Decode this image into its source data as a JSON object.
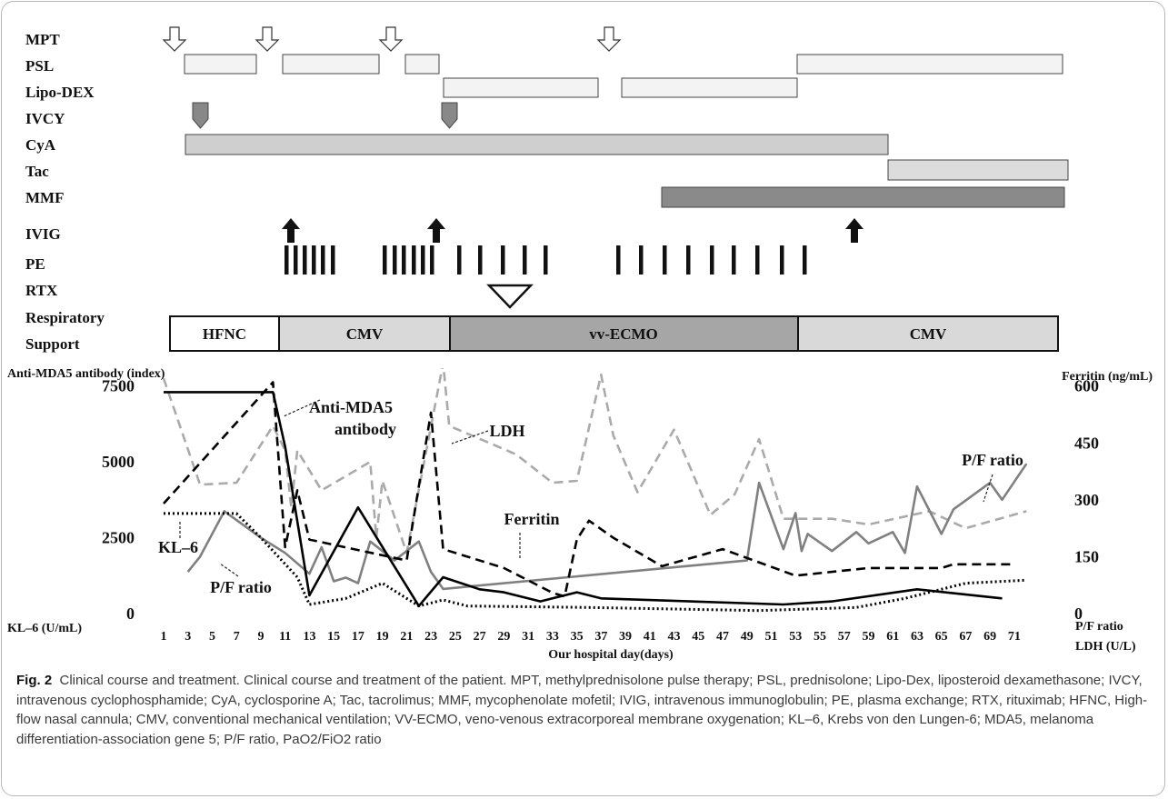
{
  "timeline": {
    "rows": [
      "MPT",
      "PSL",
      "Lipo-DEX",
      "IVCY",
      "CyA",
      "Tac",
      "MMF",
      "IVIG",
      "PE",
      "RTX"
    ],
    "respiratory_label_1": "Respiratory",
    "respiratory_label_2": "Support",
    "support_phases": [
      "HFNC",
      "CMV",
      "vv-ECMO",
      "CMV"
    ]
  },
  "chart_data": {
    "type": "line",
    "xlabel": "Our hospital day(days)",
    "x_ticks": [
      1,
      3,
      5,
      7,
      9,
      11,
      13,
      15,
      17,
      19,
      21,
      23,
      25,
      27,
      29,
      31,
      33,
      35,
      37,
      39,
      41,
      43,
      45,
      47,
      49,
      51,
      53,
      55,
      57,
      59,
      61,
      63,
      65,
      67,
      69,
      71
    ],
    "left_axis": {
      "title": "Anti-MDA5 antibody (index)",
      "ticks": [
        0,
        2500,
        5000,
        7500
      ],
      "ylim": [
        0,
        8000
      ],
      "bottom_label": "KL–6 (U/mL)"
    },
    "right_axis": {
      "title": "Ferritin (ng/mL)",
      "ticks": [
        0,
        150,
        300,
        450,
        600
      ],
      "ylim": [
        0,
        640
      ],
      "bottom_label_1": "P/F ratio",
      "bottom_label_2": "LDH (U/L)"
    },
    "annotations": {
      "anti_mda5_1": "Anti-MDA5",
      "anti_mda5_2": "antibody",
      "ldh": "LDH",
      "ferritin": "Ferritin",
      "pf_top": "P/F ratio",
      "kl6": "KL–6",
      "pf_left": "P/F ratio"
    },
    "series": [
      {
        "name": "Anti-MDA5 antibody",
        "axis": "left",
        "style": "solid",
        "color": "#000000",
        "points": [
          [
            1,
            7300
          ],
          [
            10,
            7300
          ],
          [
            11,
            5500
          ],
          [
            13,
            600
          ],
          [
            17,
            3500
          ],
          [
            22,
            250
          ],
          [
            24,
            1200
          ],
          [
            27,
            800
          ],
          [
            29,
            700
          ],
          [
            32,
            400
          ],
          [
            33,
            500
          ],
          [
            35,
            700
          ],
          [
            37,
            500
          ],
          [
            52,
            300
          ],
          [
            56,
            400
          ],
          [
            63,
            800
          ],
          [
            70,
            500
          ]
        ]
      },
      {
        "name": "Ferritin",
        "axis": "right",
        "style": "dashed",
        "color": "#000000",
        "points": [
          [
            1,
            290
          ],
          [
            10,
            610
          ],
          [
            11,
            175
          ],
          [
            12,
            325
          ],
          [
            13,
            195
          ],
          [
            21,
            140
          ],
          [
            23,
            530
          ],
          [
            24,
            170
          ],
          [
            29,
            120
          ],
          [
            33,
            55
          ],
          [
            34,
            45
          ],
          [
            35,
            195
          ],
          [
            36,
            245
          ],
          [
            38,
            200
          ],
          [
            42,
            125
          ],
          [
            47,
            170
          ],
          [
            53,
            100
          ],
          [
            59,
            120
          ],
          [
            65,
            120
          ],
          [
            66,
            130
          ],
          [
            71,
            130
          ]
        ]
      },
      {
        "name": "LDH",
        "axis": "right",
        "style": "dashed",
        "color": "#aaaaaa",
        "points": [
          [
            1,
            620
          ],
          [
            4,
            340
          ],
          [
            7,
            345
          ],
          [
            10,
            495
          ],
          [
            11,
            430
          ],
          [
            11.5,
            280
          ],
          [
            12,
            430
          ],
          [
            14,
            325
          ],
          [
            18,
            400
          ],
          [
            18.5,
            200
          ],
          [
            19,
            350
          ],
          [
            21,
            160
          ],
          [
            24,
            660
          ],
          [
            24.5,
            495
          ],
          [
            30,
            420
          ],
          [
            33,
            345
          ],
          [
            35,
            350
          ],
          [
            37,
            630
          ],
          [
            38,
            470
          ],
          [
            40,
            320
          ],
          [
            43,
            485
          ],
          [
            46,
            260
          ],
          [
            48,
            315
          ],
          [
            50,
            460
          ],
          [
            52,
            250
          ],
          [
            56,
            250
          ],
          [
            59,
            235
          ],
          [
            64,
            270
          ],
          [
            67,
            225
          ],
          [
            72,
            270
          ]
        ]
      },
      {
        "name": "P/F ratio",
        "axis": "right",
        "style": "solid",
        "color": "#808080",
        "points": [
          [
            3,
            110
          ],
          [
            4,
            150
          ],
          [
            6,
            270
          ],
          [
            9,
            200
          ],
          [
            11,
            160
          ],
          [
            13,
            105
          ],
          [
            14,
            175
          ],
          [
            15,
            85
          ],
          [
            16,
            95
          ],
          [
            17,
            80
          ],
          [
            18,
            190
          ],
          [
            20,
            140
          ],
          [
            22,
            190
          ],
          [
            23,
            110
          ],
          [
            24,
            65
          ],
          [
            49,
            140
          ],
          [
            50,
            345
          ],
          [
            52,
            170
          ],
          [
            53,
            265
          ],
          [
            53.5,
            165
          ],
          [
            54,
            210
          ],
          [
            56,
            165
          ],
          [
            58,
            215
          ],
          [
            59,
            185
          ],
          [
            61,
            215
          ],
          [
            62,
            160
          ],
          [
            63,
            335
          ],
          [
            65,
            210
          ],
          [
            66,
            275
          ],
          [
            69,
            345
          ],
          [
            70,
            300
          ],
          [
            72,
            395
          ]
        ]
      },
      {
        "name": "KL–6",
        "axis": "left",
        "style": "dotted",
        "color": "#000000",
        "points": [
          [
            1,
            3300
          ],
          [
            7,
            3300
          ],
          [
            9,
            2500
          ],
          [
            12,
            1200
          ],
          [
            13,
            300
          ],
          [
            16,
            500
          ],
          [
            19,
            1000
          ],
          [
            22,
            250
          ],
          [
            24,
            450
          ],
          [
            26,
            250
          ],
          [
            36,
            200
          ],
          [
            50,
            100
          ],
          [
            58,
            200
          ],
          [
            62,
            500
          ],
          [
            67,
            1000
          ],
          [
            72,
            1100
          ]
        ]
      }
    ]
  },
  "caption": {
    "label": "Fig. 2",
    "text": "Clinical course and treatment. Clinical course and treatment of the patient. MPT, methylprednisolone pulse therapy; PSL, prednisolone; Lipo-Dex, liposteroid dexamethasone; IVCY, intravenous cyclophosphamide; CyA, cyclosporine A; Tac, tacrolimus; MMF, mycophenolate mofetil; IVIG, intravenous immunoglobulin; PE, plasma exchange; RTX, rituximab; HFNC, High-flow nasal cannula; CMV, conventional mechanical ventilation; VV-ECMO, veno-venous extracorporeal membrane oxygenation; KL–6, Krebs von den Lungen-6; MDA5, melanoma differentiation-association gene 5; P/F ratio, PaO2/FiO2 ratio"
  }
}
